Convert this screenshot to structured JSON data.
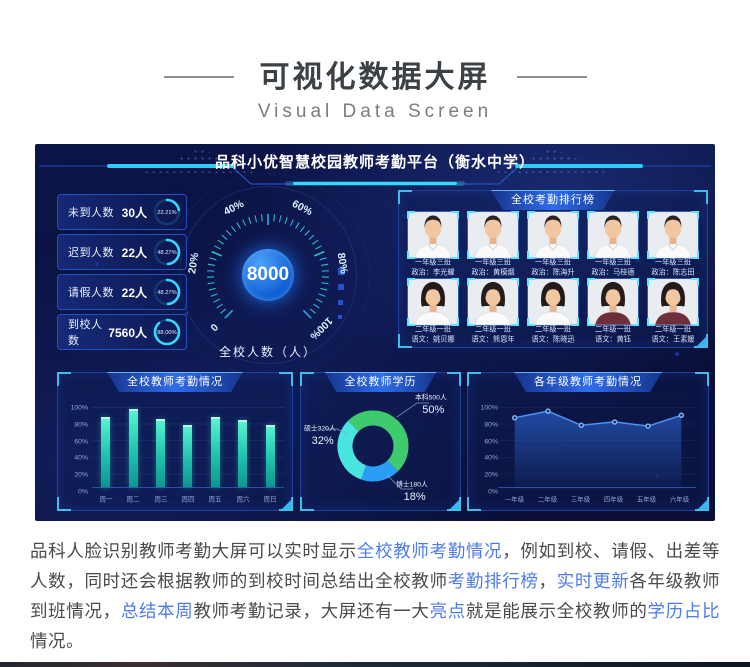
{
  "header": {
    "title": "可视化数据大屏",
    "subtitle": "Visual Data Screen"
  },
  "screen": {
    "title": "品科小优智慧校园教师考勤平台（衡水中学）",
    "stats": [
      {
        "label": "未到人数",
        "value": "30人",
        "percent": "22.21%",
        "pct": 22.21
      },
      {
        "label": "迟到人数",
        "value": "22人",
        "percent": "48.27%",
        "pct": 48.27
      },
      {
        "label": "请假人数",
        "value": "22人",
        "percent": "48.27%",
        "pct": 48.27
      },
      {
        "label": "到校人数",
        "value": "7560人",
        "percent": "88.00%",
        "pct": 88.0
      }
    ],
    "gauge": {
      "value": "8000",
      "label": "全校人数（人）"
    },
    "ranking": {
      "title": "全校考勤排行榜",
      "teachers": [
        {
          "group": "一年级三班",
          "name": "政治：李光耀",
          "gender": "m",
          "shirt": "#fafafa"
        },
        {
          "group": "一年级三班",
          "name": "政治：黄模烟",
          "gender": "m",
          "shirt": "#fafafa"
        },
        {
          "group": "一年级三班",
          "name": "政治：陈海升",
          "gender": "m",
          "shirt": "#fafafa"
        },
        {
          "group": "一年级三班",
          "name": "政治：马桂德",
          "gender": "m",
          "shirt": "#fafafa"
        },
        {
          "group": "一年级三班",
          "name": "政治：陈志田",
          "gender": "m",
          "shirt": "#fafafa"
        },
        {
          "group": "二年级一班",
          "name": "语文：姚贝娜",
          "gender": "f",
          "shirt": "#fafafa"
        },
        {
          "group": "二年级一班",
          "name": "语文：熊恩年",
          "gender": "f",
          "shirt": "#fafafa"
        },
        {
          "group": "二年级一班",
          "name": "语文：陈晓迅",
          "gender": "f",
          "shirt": "#fafafa"
        },
        {
          "group": "二年级一班",
          "name": "语文：黄钰",
          "gender": "f",
          "shirt": "#6e2f3c"
        },
        {
          "group": "二年级一班",
          "name": "语文：王素媛",
          "gender": "f",
          "shirt": "#6e2f3c"
        }
      ]
    }
  },
  "chart_data": [
    {
      "type": "bar",
      "title": "全校教师考勤情况",
      "categories": [
        "周一",
        "周二",
        "周三",
        "周四",
        "周五",
        "周六",
        "周日"
      ],
      "values": [
        88,
        97,
        85,
        78,
        88,
        84,
        77
      ],
      "ylim": [
        0,
        100
      ],
      "ytick_labels": [
        "0%",
        "20%",
        "40%",
        "60%",
        "80%",
        "100%"
      ],
      "bar_color": "#2fe0c0",
      "grid": true,
      "legend": "none"
    },
    {
      "type": "pie",
      "title": "全校教师学历",
      "slices": [
        {
          "label": "本科500人",
          "percent": 50,
          "percent_label": "50%",
          "color": "#3ecb6e"
        },
        {
          "label": "硕士320人",
          "percent": 32,
          "percent_label": "32%",
          "color": "#49e6df"
        },
        {
          "label": "博士180人",
          "percent": 18,
          "percent_label": "18%",
          "color": "#2a9ef5"
        }
      ],
      "donut": true,
      "legend": "callout-labels"
    },
    {
      "type": "area",
      "title": "各年级教师考勤情况",
      "categories": [
        "一年级",
        "二年级",
        "三年级",
        "四年级",
        "五年级",
        "六年级"
      ],
      "values": [
        87,
        95,
        78,
        82,
        77,
        90
      ],
      "ylim": [
        0,
        100
      ],
      "ytick_labels": [
        "0%",
        "20%",
        "40%",
        "60%",
        "80%",
        "100%"
      ],
      "line_color": "#4a93f5",
      "grid": true,
      "legend": "none"
    },
    {
      "type": "gauge",
      "title": "全校人数（人）",
      "value": 8000,
      "tick_labels": [
        "0",
        "20%",
        "40%",
        "60%",
        "80%",
        "100%"
      ]
    }
  ],
  "description": {
    "segments": [
      {
        "text": "品科人脸识别教师考勤大屏可以实时显示",
        "hl": false
      },
      {
        "text": "全校教师考勤情况",
        "hl": true
      },
      {
        "text": "，例如到校、请假、出差等人数，同时还会根据教师的到校时间总结出全校教师",
        "hl": false
      },
      {
        "text": "考勤排行榜",
        "hl": true
      },
      {
        "text": "，",
        "hl": false
      },
      {
        "text": "实时更新",
        "hl": true
      },
      {
        "text": "各年级教师到班情况，",
        "hl": false
      },
      {
        "text": "总结本周",
        "hl": true
      },
      {
        "text": "教师考勤记录，大屏还有一大",
        "hl": false
      },
      {
        "text": "亮点",
        "hl": true
      },
      {
        "text": "就是能展示全校教师的",
        "hl": false
      },
      {
        "text": "学历占比",
        "hl": true
      },
      {
        "text": "情况。",
        "hl": false
      }
    ]
  },
  "colors": {
    "screen_bg": "#0a1242",
    "panel_border": "#1c3f9e",
    "accent_cyan": "#35d6ff",
    "bar_teal": "#2fe0c0",
    "donut_green": "#3ecb6e",
    "donut_cyan": "#49e6df",
    "donut_blue": "#2a9ef5",
    "line_blue": "#4a93f5",
    "highlight_text": "#4e7ce8"
  }
}
